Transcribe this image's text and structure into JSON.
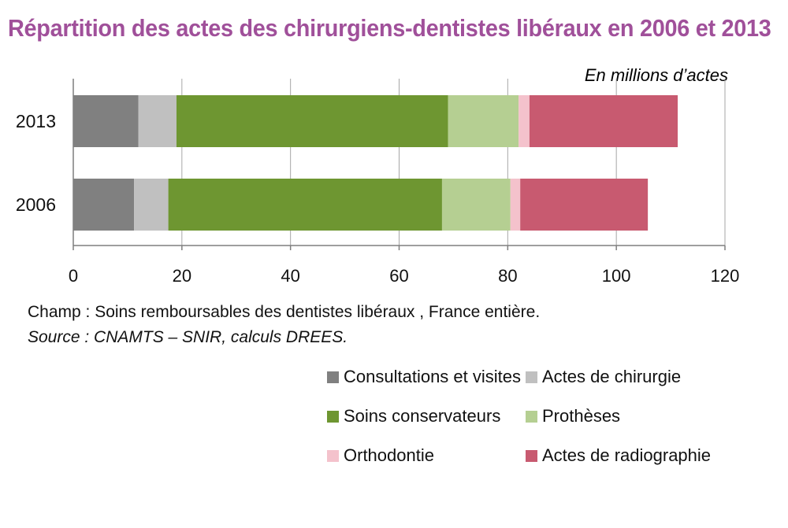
{
  "chart_data": {
    "type": "bar",
    "orientation": "horizontal",
    "stacked": true,
    "title": "Répartition des actes des chirurgiens-dentistes libéraux en 2006 et 2013",
    "unit_label": "En millions d’actes",
    "categories": [
      "2013",
      "2006"
    ],
    "series": [
      {
        "name": "Consultations et visites",
        "color": "#808080",
        "values": [
          12,
          11.2
        ]
      },
      {
        "name": "Actes de chirurgie",
        "color": "#c0c0c0",
        "values": [
          7,
          6.3
        ]
      },
      {
        "name": "Soins conservateurs",
        "color": "#6e9631",
        "values": [
          50,
          50.4
        ]
      },
      {
        "name": "Prothèses",
        "color": "#b5cf92",
        "values": [
          13,
          12.6
        ]
      },
      {
        "name": "Orthodontie",
        "color": "#f4c2cc",
        "values": [
          2,
          1.8
        ]
      },
      {
        "name": "Actes de radiographie",
        "color": "#c85a70",
        "values": [
          27.3,
          23.5
        ]
      }
    ],
    "xlim": [
      0,
      120
    ],
    "xticks": [
      0,
      20,
      40,
      60,
      80,
      100,
      120
    ],
    "grid": true,
    "legend": "bottom-right"
  },
  "notes": {
    "champ": "Champ : Soins remboursables des dentistes libéraux , France entière.",
    "source": "Source : CNAMTS – SNIR, calculs DREES."
  }
}
